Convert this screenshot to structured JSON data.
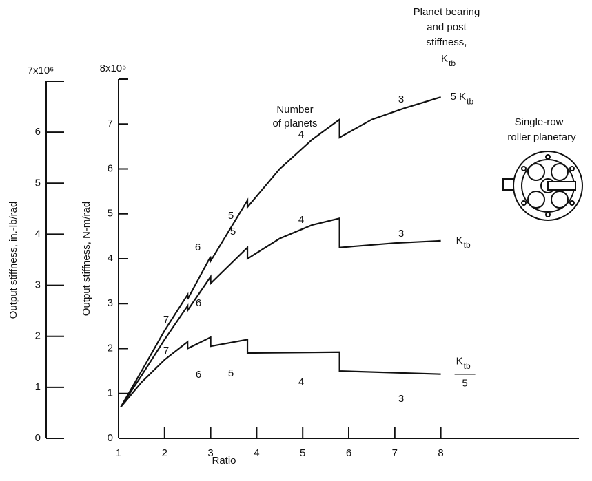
{
  "chart_data": {
    "type": "line",
    "x_label": "Ratio",
    "y_label": "Output stiffness, N-m/rad",
    "y2_label": "Output stiffness, in.-lb/rad",
    "xlim": [
      1,
      11
    ],
    "xticks": [
      1,
      2,
      3,
      4,
      5,
      6,
      7,
      8
    ],
    "ylim": [
      0,
      8
    ],
    "yticks": [
      0,
      1,
      2,
      3,
      4,
      5,
      6,
      7,
      {
        "value": 8,
        "label": "8x10⁵"
      }
    ],
    "y2lim": [
      0,
      7
    ],
    "y2ticks": [
      0,
      1,
      2,
      3,
      4,
      5,
      6,
      {
        "value": 7,
        "label": "7x10⁶"
      }
    ],
    "legend_title": [
      "Planet bearing",
      "and post",
      "stiffness,"
    ],
    "legend_symbol": {
      "name": "K",
      "subscript": "tb"
    },
    "annotation": [
      "Number",
      "of planets"
    ],
    "inset_caption": [
      "Single-row",
      "roller planetary"
    ],
    "series": [
      {
        "name": "5 K",
        "subscript": "tb",
        "color": "#111111",
        "labels": [
          "6",
          "5",
          "4",
          "3"
        ],
        "x": [
          1.05,
          1.5,
          2,
          2.5,
          2.5,
          3,
          3,
          3.8,
          3.8,
          4.5,
          5.2,
          5.8,
          5.8,
          6.5,
          7.2,
          8
        ],
        "values": [
          0.7,
          1.5,
          2.4,
          3.2,
          3.1,
          4.05,
          3.95,
          5.3,
          5.15,
          6.0,
          6.65,
          7.1,
          6.7,
          7.1,
          7.35,
          7.6
        ]
      },
      {
        "name": "K",
        "subscript": "tb",
        "color": "#111111",
        "labels": [
          "7",
          "6",
          "5",
          "4",
          "3"
        ],
        "x": [
          1.05,
          1.5,
          2,
          2.5,
          2.5,
          3,
          3,
          3.8,
          3.8,
          4.5,
          5.2,
          5.8,
          5.8,
          7,
          8
        ],
        "values": [
          0.7,
          1.4,
          2.2,
          2.95,
          2.85,
          3.6,
          3.45,
          4.25,
          4.0,
          4.45,
          4.75,
          4.9,
          4.25,
          4.35,
          4.4
        ]
      },
      {
        "name": "K",
        "subscript": "tb",
        "denominator": "5",
        "color": "#111111",
        "labels": [
          "7",
          "6",
          "5",
          "4",
          "3"
        ],
        "x": [
          1.05,
          1.5,
          2,
          2.5,
          2.5,
          3,
          3,
          3.8,
          3.8,
          5.8,
          5.8,
          8
        ],
        "values": [
          0.7,
          1.25,
          1.75,
          2.15,
          2.0,
          2.25,
          2.05,
          2.2,
          1.9,
          1.92,
          1.5,
          1.43
        ]
      }
    ]
  }
}
